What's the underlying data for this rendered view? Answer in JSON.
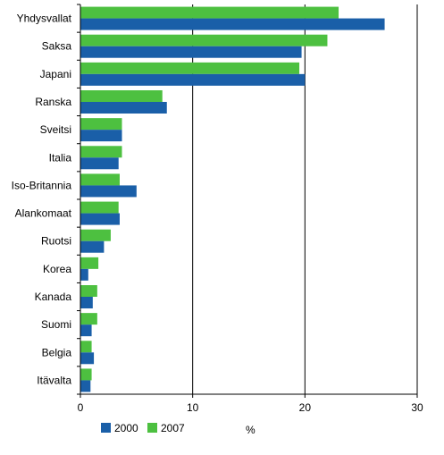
{
  "chart_data": {
    "type": "bar",
    "orientation": "horizontal",
    "categories": [
      "Yhdysvallat",
      "Saksa",
      "Japani",
      "Ranska",
      "Sveitsi",
      "Italia",
      "Iso-Britannia",
      "Alankomaat",
      "Ruotsi",
      "Korea",
      "Kanada",
      "Suomi",
      "Belgia",
      "Itävalta"
    ],
    "series": [
      {
        "name": "2000",
        "color": "#1a5fa8",
        "values": [
          27.1,
          19.7,
          20.0,
          7.7,
          3.7,
          3.4,
          5.0,
          3.5,
          2.1,
          0.7,
          1.1,
          1.0,
          1.2,
          0.9
        ]
      },
      {
        "name": "2007",
        "color": "#4dc040",
        "values": [
          23.0,
          22.0,
          19.5,
          7.3,
          3.7,
          3.7,
          3.5,
          3.4,
          2.7,
          1.6,
          1.5,
          1.5,
          1.0,
          1.0
        ]
      }
    ],
    "xlim": [
      0,
      30
    ],
    "xticks": [
      0,
      10,
      20,
      30
    ],
    "xlabel": "%",
    "grid": "vertical",
    "legend_position": "bottom"
  }
}
